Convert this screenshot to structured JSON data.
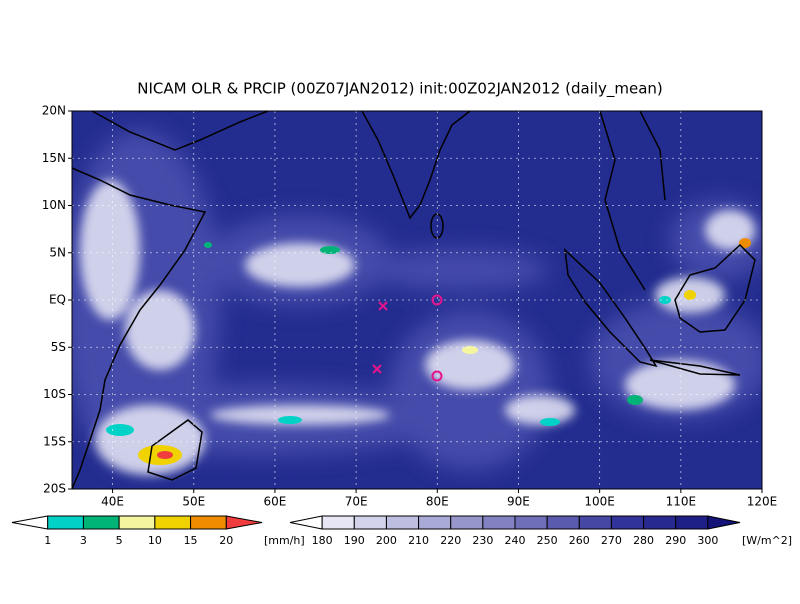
{
  "title": "NICAM OLR & PRCIP (00Z07JAN2012) init:00Z02JAN2012 (daily_mean)",
  "lat_labels": [
    "20N",
    "15N",
    "10N",
    "5N",
    "EQ",
    "5S",
    "10S",
    "15S",
    "20S"
  ],
  "lon_labels": [
    "40E",
    "50E",
    "60E",
    "70E",
    "80E",
    "90E",
    "100E",
    "110E",
    "120E"
  ],
  "precip_colorbar": {
    "labels": [
      "1",
      "3",
      "5",
      "10",
      "15",
      "20"
    ],
    "unit": "[mm/h]",
    "colors": [
      "#ffffff",
      "#00d2c8",
      "#00b478",
      "#f5f5a0",
      "#f0d200",
      "#f08c00",
      "#f03c3c"
    ]
  },
  "olr_colorbar": {
    "labels": [
      "180",
      "190",
      "200",
      "210",
      "220",
      "230",
      "240",
      "250",
      "260",
      "270",
      "280",
      "290",
      "300"
    ],
    "unit": "[W/m^2]",
    "colors": [
      "#ffffff",
      "#e6e6f5",
      "#d2d2eb",
      "#bebee1",
      "#aaaad7",
      "#9696cd",
      "#8282c3",
      "#6e6eb9",
      "#5a5aaf",
      "#4646a5",
      "#32329b",
      "#282891",
      "#1e1e87",
      "#141478"
    ]
  }
}
